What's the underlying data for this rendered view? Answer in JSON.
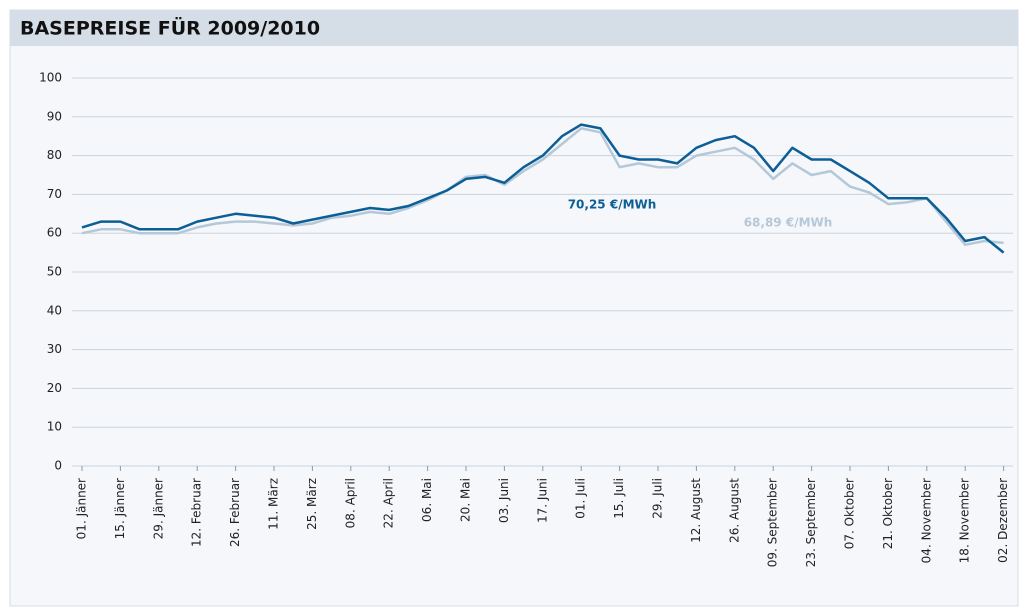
{
  "chart_data": {
    "type": "line",
    "title": "BASEPREISE FÜR 2009/2010",
    "categories": [
      "01. Jänner",
      null,
      "15. Jänner",
      null,
      "29. Jänner",
      null,
      "12. Februar",
      null,
      "26. Februar",
      null,
      "11. März",
      null,
      "25. März",
      null,
      "08. April",
      null,
      "22. April",
      null,
      "06. Mai",
      null,
      "20. Mai",
      null,
      "03. Juni",
      null,
      "17. Juni",
      null,
      "01. Juli",
      null,
      "15. Juli",
      null,
      "29. Juli",
      null,
      "12. August",
      null,
      "26. August",
      null,
      "09. September",
      null,
      "23. September",
      null,
      "07. Oktober",
      null,
      "21. Oktober",
      null,
      "04. November",
      null,
      "18. November",
      null,
      "02. Dezember"
    ],
    "series": [
      {
        "color": "#0b5e96",
        "values": [
          61.5,
          63,
          63,
          61,
          61,
          61,
          63,
          64,
          65,
          64.5,
          64,
          62.5,
          63.5,
          64.5,
          65.5,
          66.5,
          66,
          67,
          69,
          71,
          74,
          74.5,
          73,
          77,
          80,
          85,
          88,
          87,
          80,
          79,
          79,
          78,
          82,
          84,
          85,
          82,
          76,
          82,
          79,
          79,
          76,
          73,
          69,
          69,
          69,
          64,
          58,
          59,
          55
        ]
      },
      {
        "color": "#b5c8d9",
        "values": [
          60,
          61,
          61,
          60,
          60,
          60,
          61.5,
          62.5,
          63,
          63,
          62.5,
          62,
          62.5,
          64,
          64.5,
          65.5,
          65,
          66.5,
          68.5,
          71,
          74.5,
          75,
          72.5,
          76,
          79,
          83,
          87,
          86,
          77,
          78,
          77,
          77,
          80,
          81,
          82,
          79,
          74,
          78,
          75,
          76,
          72,
          70.5,
          67.5,
          68,
          69,
          63,
          57,
          58,
          57.5
        ]
      }
    ],
    "annotations": [
      {
        "text": "70,25 €/MWh",
        "color": "#0b5e96"
      },
      {
        "text": "68,89 €/MWh",
        "color": "#b5c8d9"
      }
    ],
    "ylim": [
      0,
      100
    ],
    "yticks": [
      0,
      10,
      20,
      30,
      40,
      50,
      60,
      70,
      80,
      90,
      100
    ],
    "grid": true
  }
}
